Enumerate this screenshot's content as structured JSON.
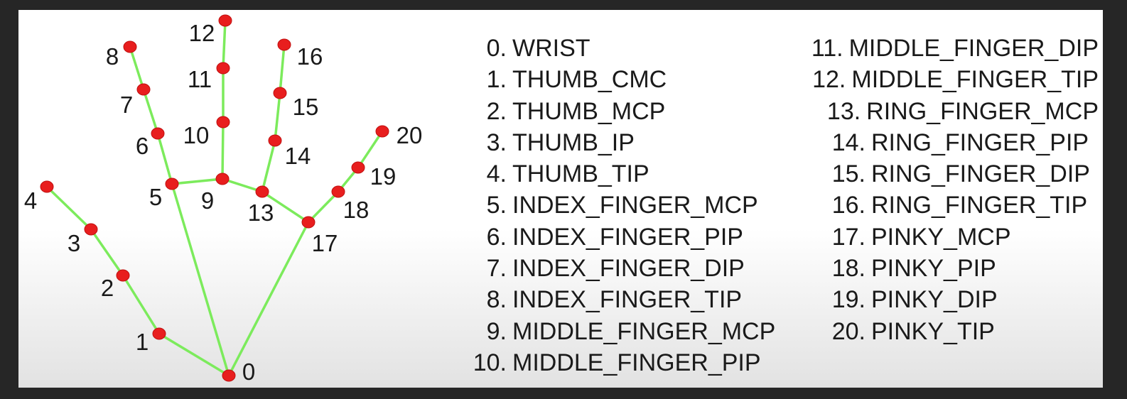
{
  "landmarks": [
    {
      "id": "0",
      "name": "WRIST"
    },
    {
      "id": "1",
      "name": "THUMB_CMC"
    },
    {
      "id": "2",
      "name": "THUMB_MCP"
    },
    {
      "id": "3",
      "name": "THUMB_IP"
    },
    {
      "id": "4",
      "name": "THUMB_TIP"
    },
    {
      "id": "5",
      "name": "INDEX_FINGER_MCP"
    },
    {
      "id": "6",
      "name": "INDEX_FINGER_PIP"
    },
    {
      "id": "7",
      "name": "INDEX_FINGER_DIP"
    },
    {
      "id": "8",
      "name": "INDEX_FINGER_TIP"
    },
    {
      "id": "9",
      "name": "MIDDLE_FINGER_MCP"
    },
    {
      "id": "10",
      "name": "MIDDLE_FINGER_PIP"
    },
    {
      "id": "11",
      "name": "MIDDLE_FINGER_DIP"
    },
    {
      "id": "12",
      "name": "MIDDLE_FINGER_TIP"
    },
    {
      "id": "13",
      "name": "RING_FINGER_MCP"
    },
    {
      "id": "14",
      "name": "RING_FINGER_PIP"
    },
    {
      "id": "15",
      "name": "RING_FINGER_DIP"
    },
    {
      "id": "16",
      "name": "RING_FINGER_TIP"
    },
    {
      "id": "17",
      "name": "PINKY_MCP"
    },
    {
      "id": "18",
      "name": "PINKY_PIP"
    },
    {
      "id": "19",
      "name": "PINKY_DIP"
    },
    {
      "id": "20",
      "name": "PINKY_TIP"
    }
  ],
  "connections": [
    [
      0,
      1
    ],
    [
      1,
      2
    ],
    [
      2,
      3
    ],
    [
      3,
      4
    ],
    [
      0,
      5
    ],
    [
      5,
      6
    ],
    [
      6,
      7
    ],
    [
      7,
      8
    ],
    [
      5,
      9
    ],
    [
      9,
      10
    ],
    [
      10,
      11
    ],
    [
      11,
      12
    ],
    [
      9,
      13
    ],
    [
      13,
      14
    ],
    [
      14,
      15
    ],
    [
      15,
      16
    ],
    [
      13,
      17
    ],
    [
      17,
      18
    ],
    [
      18,
      19
    ],
    [
      19,
      20
    ],
    [
      0,
      17
    ]
  ],
  "colors": {
    "bone": "#7CEB5C",
    "joint": "#E81E1E",
    "text": "#1a1a1a",
    "border": "#262626"
  }
}
